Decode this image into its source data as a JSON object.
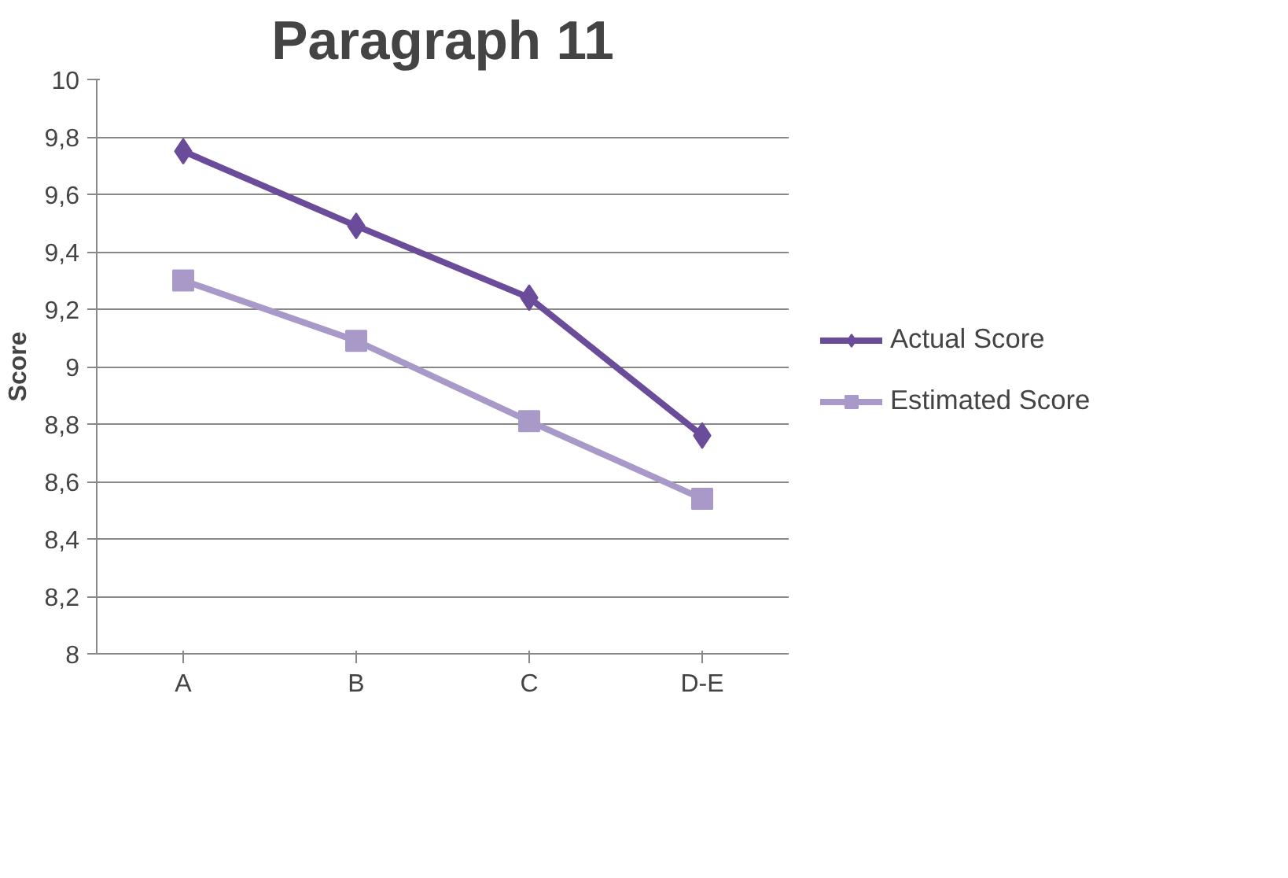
{
  "chart_data": {
    "type": "line",
    "title": "Paragraph 11",
    "ylabel": "Score",
    "categories": [
      "A",
      "B",
      "C",
      "D-E"
    ],
    "series": [
      {
        "name": "Actual Score",
        "color": "#6b4c9a",
        "marker": "diamond",
        "values": [
          9.75,
          9.49,
          9.24,
          8.76
        ]
      },
      {
        "name": "Estimated Score",
        "color": "#a999c9",
        "marker": "square",
        "values": [
          9.3,
          9.09,
          8.81,
          8.54
        ]
      }
    ],
    "ylim": [
      8,
      10
    ],
    "yticks": [
      8,
      {
        "value": 8.2,
        "label": "8,2"
      },
      {
        "value": 8.4,
        "label": "8,4"
      },
      {
        "value": 8.6,
        "label": "8,6"
      },
      {
        "value": 8.8,
        "label": "8,8"
      },
      9,
      {
        "value": 9.2,
        "label": "9,2"
      },
      {
        "value": 9.4,
        "label": "9,4"
      },
      {
        "value": 9.6,
        "label": "9,6"
      },
      {
        "value": 9.8,
        "label": "9,8"
      },
      10
    ],
    "grid": "y",
    "legend": "right",
    "line_style": "solid"
  }
}
